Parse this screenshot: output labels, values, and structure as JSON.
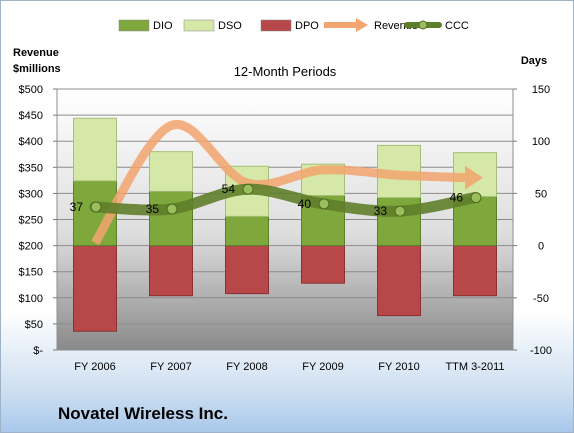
{
  "company_name": "Novatel Wireless Inc.",
  "colors": {
    "dio": "#7ea83c",
    "dso": "#d6e8a8",
    "dpo": "#b8474a",
    "revenue": "#f2a56e",
    "ccc": "#5f7e2a"
  },
  "chart_data": {
    "type": "bar",
    "title": "12-Month Periods",
    "y_left_label": "Revenue $millions",
    "y_right_label": "Days",
    "categories": [
      "FY 2006",
      "FY 2007",
      "FY 2008",
      "FY 2009",
      "FY 2010",
      "TTM 3-2011"
    ],
    "y_left_ticks": [
      "$500",
      "$450",
      "$400",
      "$350",
      "$300",
      "$250",
      "$200",
      "$150",
      "$100",
      "$50",
      "$-"
    ],
    "y_right_ticks": [
      "150",
      "100",
      "50",
      "0",
      "-50",
      "-100"
    ],
    "ylim_left": [
      0,
      500
    ],
    "ylim_right": [
      -100,
      150
    ],
    "legend_position": "top",
    "legend": [
      "DIO",
      "DSO",
      "DPO",
      "Revenue",
      "CCC"
    ],
    "series": [
      {
        "name": "DIO",
        "type": "bar",
        "axis": "right",
        "values": [
          62,
          52,
          28,
          48,
          46,
          47
        ]
      },
      {
        "name": "DSO",
        "type": "bar",
        "axis": "right",
        "values": [
          60,
          38,
          48,
          30,
          50,
          42
        ]
      },
      {
        "name": "DPO",
        "type": "bar",
        "axis": "right",
        "values": [
          -82,
          -48,
          -46,
          -36,
          -67,
          -48
        ]
      },
      {
        "name": "Revenue",
        "type": "line",
        "axis": "left",
        "values": [
          205,
          430,
          320,
          345,
          335,
          330
        ]
      },
      {
        "name": "CCC",
        "type": "line",
        "axis": "right",
        "values": [
          37,
          35,
          54,
          40,
          33,
          46
        ]
      }
    ],
    "ccc_labels": [
      "37",
      "35",
      "54",
      "40",
      "33",
      "46"
    ]
  }
}
